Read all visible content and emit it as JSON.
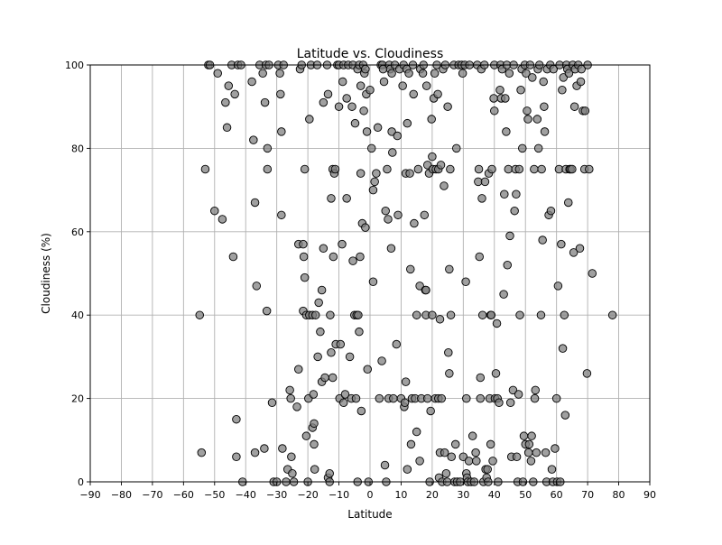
{
  "chart_data": {
    "type": "scatter",
    "title": "Latitude vs. Cloudiness",
    "xlabel": "Latitude",
    "ylabel": "Cloudiness (%)",
    "xlim": [
      -90,
      90
    ],
    "ylim": [
      0,
      100
    ],
    "xticks": [
      -90,
      -80,
      -70,
      -60,
      -50,
      -40,
      -30,
      -20,
      -10,
      0,
      10,
      20,
      30,
      40,
      50,
      60,
      70,
      80,
      90
    ],
    "yticks": [
      0,
      20,
      40,
      60,
      80,
      100
    ],
    "grid": true,
    "marker_color": "#808080",
    "marker_edge": "#000000",
    "points": [
      [
        -54.8,
        40
      ],
      [
        -54.2,
        7
      ],
      [
        -53,
        75
      ],
      [
        -52,
        100
      ],
      [
        -51.5,
        100
      ],
      [
        -50,
        65
      ],
      [
        -49,
        98
      ],
      [
        -47.5,
        63
      ],
      [
        -46.5,
        91
      ],
      [
        -46,
        85
      ],
      [
        -45.5,
        95
      ],
      [
        -44.5,
        100
      ],
      [
        -44,
        54
      ],
      [
        -43.5,
        93
      ],
      [
        -43,
        15
      ],
      [
        -43,
        6
      ],
      [
        -42.5,
        100
      ],
      [
        -41.5,
        100
      ],
      [
        -41,
        0
      ],
      [
        -38,
        96
      ],
      [
        -37.5,
        82
      ],
      [
        -37,
        67
      ],
      [
        -37,
        7
      ],
      [
        -36.5,
        47
      ],
      [
        -35.5,
        100
      ],
      [
        -34.5,
        98
      ],
      [
        -34,
        8
      ],
      [
        -33.8,
        91
      ],
      [
        -33.5,
        100
      ],
      [
        -33.2,
        41
      ],
      [
        -33,
        75
      ],
      [
        -33,
        80
      ],
      [
        -32.5,
        100
      ],
      [
        -31.5,
        19
      ],
      [
        -31,
        0
      ],
      [
        -30,
        0
      ],
      [
        -29.5,
        100
      ],
      [
        -29,
        98
      ],
      [
        -28.8,
        93
      ],
      [
        -28.5,
        84
      ],
      [
        -28.5,
        64
      ],
      [
        -28.2,
        8
      ],
      [
        -27.8,
        100
      ],
      [
        -27,
        0
      ],
      [
        -26.5,
        3
      ],
      [
        -25.8,
        22
      ],
      [
        -25.5,
        20
      ],
      [
        -25.3,
        6
      ],
      [
        -25,
        2
      ],
      [
        -24.5,
        0
      ],
      [
        -23.5,
        18
      ],
      [
        -23,
        27
      ],
      [
        -23,
        57
      ],
      [
        -22.5,
        99
      ],
      [
        -22,
        100
      ],
      [
        -21.5,
        57
      ],
      [
        -21.5,
        41
      ],
      [
        -21.3,
        54
      ],
      [
        -21,
        49
      ],
      [
        -21,
        75
      ],
      [
        -20.5,
        40
      ],
      [
        -20.5,
        11
      ],
      [
        -20,
        0
      ],
      [
        -19.8,
        20
      ],
      [
        -19.5,
        87
      ],
      [
        -19.5,
        40
      ],
      [
        -19,
        100
      ],
      [
        -18.5,
        40
      ],
      [
        -18.5,
        13
      ],
      [
        -18.2,
        21
      ],
      [
        -18,
        14
      ],
      [
        -18,
        9
      ],
      [
        -17.8,
        3
      ],
      [
        -17.5,
        40
      ],
      [
        -17,
        100
      ],
      [
        -16.8,
        30
      ],
      [
        -16.5,
        43
      ],
      [
        -16,
        36
      ],
      [
        -15.5,
        24
      ],
      [
        -15.5,
        46
      ],
      [
        -15,
        56
      ],
      [
        -15,
        91
      ],
      [
        -14.5,
        25
      ],
      [
        -13.8,
        100
      ],
      [
        -13.5,
        93
      ],
      [
        -13.5,
        1
      ],
      [
        -13,
        0
      ],
      [
        -13,
        2
      ],
      [
        -12.8,
        40
      ],
      [
        -12.5,
        68
      ],
      [
        -12.5,
        31
      ],
      [
        -12,
        75
      ],
      [
        -12,
        25
      ],
      [
        -11.8,
        54
      ],
      [
        -11.5,
        74
      ],
      [
        -11.2,
        75
      ],
      [
        -11,
        33
      ],
      [
        -10.5,
        100
      ],
      [
        -10,
        90
      ],
      [
        -10,
        100
      ],
      [
        -9.8,
        20
      ],
      [
        -9.5,
        33
      ],
      [
        -9,
        57
      ],
      [
        -8.8,
        96
      ],
      [
        -8.5,
        100
      ],
      [
        -8.5,
        19
      ],
      [
        -8,
        21
      ],
      [
        -7.5,
        68
      ],
      [
        -7.5,
        92
      ],
      [
        -7,
        100
      ],
      [
        -6.5,
        30
      ],
      [
        -6,
        20
      ],
      [
        -5.8,
        90
      ],
      [
        -5.5,
        53
      ],
      [
        -5.5,
        100
      ],
      [
        -5,
        40
      ],
      [
        -4.8,
        86
      ],
      [
        -4.5,
        20
      ],
      [
        -4.3,
        40
      ],
      [
        -4,
        99
      ],
      [
        -4,
        0
      ],
      [
        -3.8,
        40
      ],
      [
        -3.5,
        100
      ],
      [
        -3.5,
        36
      ],
      [
        -3.2,
        54
      ],
      [
        -3,
        95
      ],
      [
        -3,
        74
      ],
      [
        -2.8,
        17
      ],
      [
        -2.5,
        62
      ],
      [
        -2.2,
        100
      ],
      [
        -2,
        89
      ],
      [
        -1.8,
        98
      ],
      [
        -1.5,
        99
      ],
      [
        -1.5,
        61
      ],
      [
        -1.2,
        93
      ],
      [
        -1,
        84
      ],
      [
        -0.8,
        27
      ],
      [
        -0.5,
        0
      ],
      [
        0,
        94
      ],
      [
        0.5,
        80
      ],
      [
        1,
        70
      ],
      [
        1,
        48
      ],
      [
        1.5,
        72
      ],
      [
        2,
        74
      ],
      [
        2.5,
        85
      ],
      [
        3,
        20
      ],
      [
        3.5,
        100
      ],
      [
        3.8,
        29
      ],
      [
        4,
        100
      ],
      [
        4.2,
        99
      ],
      [
        4.5,
        96
      ],
      [
        4.8,
        4
      ],
      [
        5,
        65
      ],
      [
        5.2,
        0
      ],
      [
        5.5,
        75
      ],
      [
        5.8,
        63
      ],
      [
        6,
        20
      ],
      [
        6.2,
        100
      ],
      [
        6.5,
        99
      ],
      [
        6.8,
        56
      ],
      [
        7,
        98
      ],
      [
        7,
        84
      ],
      [
        7.2,
        79
      ],
      [
        7.5,
        20
      ],
      [
        8,
        100
      ],
      [
        8.5,
        33
      ],
      [
        8.8,
        83
      ],
      [
        9,
        64
      ],
      [
        9.5,
        99
      ],
      [
        10,
        20
      ],
      [
        10.5,
        95
      ],
      [
        10.8,
        100
      ],
      [
        11,
        18
      ],
      [
        11.2,
        19
      ],
      [
        11.5,
        74
      ],
      [
        11.5,
        24
      ],
      [
        11.8,
        99
      ],
      [
        12,
        86
      ],
      [
        12,
        3
      ],
      [
        12.5,
        98
      ],
      [
        12.8,
        74
      ],
      [
        13,
        51
      ],
      [
        13.2,
        9
      ],
      [
        13.5,
        20
      ],
      [
        13.8,
        100
      ],
      [
        14,
        93
      ],
      [
        14.2,
        62
      ],
      [
        14.5,
        20
      ],
      [
        15,
        40
      ],
      [
        15,
        12
      ],
      [
        15.5,
        75
      ],
      [
        16,
        47
      ],
      [
        16,
        5
      ],
      [
        16.2,
        99
      ],
      [
        16.5,
        20
      ],
      [
        17,
        98
      ],
      [
        17.2,
        100
      ],
      [
        17.5,
        64
      ],
      [
        17.8,
        46
      ],
      [
        18,
        46
      ],
      [
        18,
        40
      ],
      [
        18.2,
        95
      ],
      [
        18.5,
        76
      ],
      [
        18.5,
        20
      ],
      [
        19,
        74
      ],
      [
        19.2,
        0
      ],
      [
        19.5,
        17
      ],
      [
        19.8,
        87
      ],
      [
        20,
        78
      ],
      [
        20,
        40
      ],
      [
        20.2,
        75
      ],
      [
        20.5,
        92
      ],
      [
        20.8,
        98
      ],
      [
        21,
        20
      ],
      [
        21.2,
        75
      ],
      [
        21.5,
        100
      ],
      [
        21.8,
        93
      ],
      [
        22,
        75
      ],
      [
        22,
        20
      ],
      [
        22.2,
        1
      ],
      [
        22.5,
        7
      ],
      [
        22.5,
        39
      ],
      [
        22.8,
        76
      ],
      [
        23,
        20
      ],
      [
        23.2,
        0
      ],
      [
        23.5,
        99
      ],
      [
        23.8,
        71
      ],
      [
        24,
        7
      ],
      [
        24.2,
        100
      ],
      [
        24.5,
        2
      ],
      [
        24.8,
        0
      ],
      [
        25,
        90
      ],
      [
        25.2,
        31
      ],
      [
        25.5,
        51
      ],
      [
        25.5,
        26
      ],
      [
        25.8,
        75
      ],
      [
        26,
        40
      ],
      [
        26.2,
        6
      ],
      [
        27,
        100
      ],
      [
        27.2,
        0
      ],
      [
        27.5,
        9
      ],
      [
        27.8,
        80
      ],
      [
        28,
        0
      ],
      [
        28.5,
        100
      ],
      [
        29,
        0
      ],
      [
        29.5,
        100
      ],
      [
        29.8,
        98
      ],
      [
        30,
        6
      ],
      [
        30.5,
        100
      ],
      [
        30.8,
        48
      ],
      [
        31,
        20
      ],
      [
        31,
        2
      ],
      [
        31.2,
        1
      ],
      [
        31.5,
        0
      ],
      [
        31.8,
        5
      ],
      [
        32,
        100
      ],
      [
        32.5,
        0
      ],
      [
        33,
        11
      ],
      [
        33.5,
        0
      ],
      [
        34,
        7
      ],
      [
        34.2,
        5
      ],
      [
        34.5,
        100
      ],
      [
        34.8,
        72
      ],
      [
        35,
        75
      ],
      [
        35.2,
        54
      ],
      [
        35.5,
        25
      ],
      [
        35.5,
        20
      ],
      [
        35.8,
        99
      ],
      [
        36,
        68
      ],
      [
        36.2,
        40
      ],
      [
        36.5,
        0
      ],
      [
        36.8,
        100
      ],
      [
        37,
        72
      ],
      [
        37.2,
        3
      ],
      [
        37.5,
        1
      ],
      [
        37.8,
        3
      ],
      [
        38,
        0
      ],
      [
        38.2,
        74
      ],
      [
        38.5,
        20
      ],
      [
        38.8,
        40
      ],
      [
        38.8,
        9
      ],
      [
        39,
        40
      ],
      [
        39.2,
        75
      ],
      [
        39.5,
        5
      ],
      [
        39.8,
        92
      ],
      [
        40,
        89
      ],
      [
        40,
        100
      ],
      [
        40.2,
        20
      ],
      [
        40.5,
        26
      ],
      [
        40.8,
        38
      ],
      [
        41,
        20
      ],
      [
        41.2,
        0
      ],
      [
        41.5,
        19
      ],
      [
        41.8,
        94
      ],
      [
        42,
        100
      ],
      [
        42.2,
        92
      ],
      [
        42.5,
        99
      ],
      [
        43,
        45
      ],
      [
        43.2,
        69
      ],
      [
        43.5,
        92
      ],
      [
        43.8,
        84
      ],
      [
        44,
        100
      ],
      [
        44.2,
        52
      ],
      [
        44.5,
        75
      ],
      [
        44.8,
        98
      ],
      [
        45,
        59
      ],
      [
        45.2,
        19
      ],
      [
        45.5,
        6
      ],
      [
        46,
        22
      ],
      [
        46.2,
        100
      ],
      [
        46.5,
        65
      ],
      [
        46.8,
        75
      ],
      [
        47,
        69
      ],
      [
        47.2,
        6
      ],
      [
        47.5,
        0
      ],
      [
        47.8,
        21
      ],
      [
        48,
        75
      ],
      [
        48.2,
        40
      ],
      [
        48.5,
        94
      ],
      [
        48.8,
        99
      ],
      [
        49,
        80
      ],
      [
        49.2,
        0
      ],
      [
        49.5,
        11
      ],
      [
        49.8,
        100
      ],
      [
        50,
        9
      ],
      [
        50.2,
        98
      ],
      [
        50.5,
        89
      ],
      [
        50.8,
        87
      ],
      [
        51,
        7
      ],
      [
        51.2,
        9
      ],
      [
        51.5,
        100
      ],
      [
        51.8,
        5
      ],
      [
        52,
        11
      ],
      [
        52.2,
        97
      ],
      [
        52.5,
        0
      ],
      [
        52.8,
        75
      ],
      [
        53,
        20
      ],
      [
        53.2,
        22
      ],
      [
        53.5,
        7
      ],
      [
        53.8,
        87
      ],
      [
        54,
        99
      ],
      [
        54.2,
        80
      ],
      [
        54.5,
        100
      ],
      [
        55,
        40
      ],
      [
        55.2,
        75
      ],
      [
        55.5,
        58
      ],
      [
        55.8,
        96
      ],
      [
        56,
        90
      ],
      [
        56.2,
        84
      ],
      [
        56.5,
        7
      ],
      [
        56.8,
        0
      ],
      [
        57,
        99
      ],
      [
        57.5,
        64
      ],
      [
        58,
        100
      ],
      [
        58.2,
        65
      ],
      [
        58.5,
        3
      ],
      [
        58.8,
        0
      ],
      [
        59,
        99
      ],
      [
        59.5,
        8
      ],
      [
        60,
        20
      ],
      [
        60.2,
        0
      ],
      [
        60.5,
        47
      ],
      [
        60.8,
        75
      ],
      [
        61,
        100
      ],
      [
        61.2,
        0
      ],
      [
        61.5,
        57
      ],
      [
        61.8,
        94
      ],
      [
        62,
        32
      ],
      [
        62.2,
        97
      ],
      [
        62.5,
        40
      ],
      [
        62.8,
        16
      ],
      [
        63,
        75
      ],
      [
        63.2,
        100
      ],
      [
        63.5,
        99
      ],
      [
        63.8,
        67
      ],
      [
        64,
        98
      ],
      [
        64.2,
        75
      ],
      [
        64.5,
        75
      ],
      [
        65,
        75
      ],
      [
        65.2,
        100
      ],
      [
        65.5,
        55
      ],
      [
        65.8,
        90
      ],
      [
        66,
        99
      ],
      [
        66.5,
        95
      ],
      [
        67,
        100
      ],
      [
        67.5,
        56
      ],
      [
        67.8,
        96
      ],
      [
        68,
        99
      ],
      [
        68.5,
        89
      ],
      [
        69,
        75
      ],
      [
        69.2,
        89
      ],
      [
        69.8,
        26
      ],
      [
        70,
        100
      ],
      [
        70.5,
        75
      ],
      [
        71.5,
        50
      ],
      [
        78,
        40
      ]
    ]
  }
}
